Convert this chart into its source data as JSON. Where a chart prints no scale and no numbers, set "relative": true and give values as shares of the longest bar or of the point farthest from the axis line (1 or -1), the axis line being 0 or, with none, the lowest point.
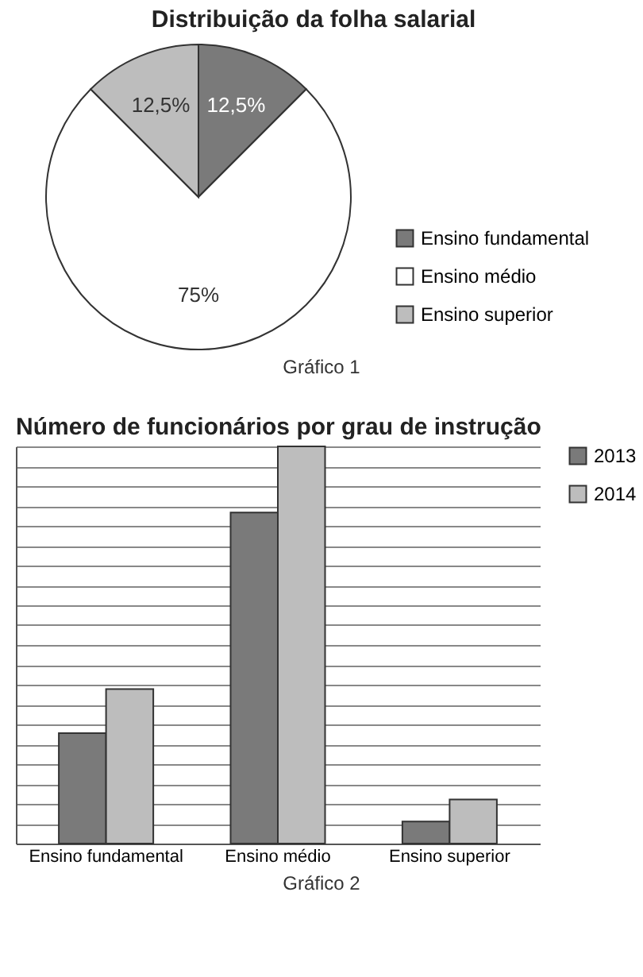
{
  "chart_data": [
    {
      "type": "pie",
      "title": "Distribuição da folha salarial",
      "categories": [
        "Ensino fundamental",
        "Ensino médio",
        "Ensino superior"
      ],
      "values": [
        12.5,
        75,
        12.5
      ],
      "colors": [
        "#7a7a7a",
        "#ffffff",
        "#bdbdbd"
      ],
      "value_labels": [
        "12,5%",
        "75%",
        "12,5%"
      ],
      "legend": "right",
      "annotations": [
        "Gráfico 1"
      ]
    },
    {
      "type": "bar",
      "title": "Número de funcionários por grau de instrução",
      "categories": [
        "Ensino fundamental",
        "Ensino médio",
        "Ensino superior"
      ],
      "relative": true,
      "grid": "y",
      "legend": "right",
      "annotations": [
        "Gráfico 2"
      ],
      "series": [
        {
          "name": "2013",
          "color": "#7a7a7a",
          "values": [
            0.2778,
            0.8333,
            0.0556
          ]
        },
        {
          "name": "2014",
          "color": "#bdbdbd",
          "values": [
            0.3889,
            1,
            0.1111
          ]
        }
      ]
    }
  ]
}
